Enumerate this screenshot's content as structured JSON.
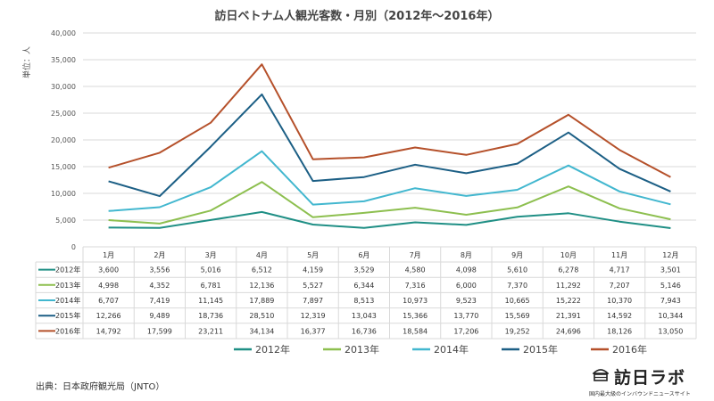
{
  "chart_data": {
    "type": "line",
    "title": "訪日ベトナム人観光客数・月別（2012年～2016年）",
    "unit_label": "単位：人",
    "categories": [
      "1月",
      "2月",
      "3月",
      "4月",
      "5月",
      "6月",
      "7月",
      "8月",
      "9月",
      "10月",
      "11月",
      "12月"
    ],
    "ylim": [
      0,
      40000
    ],
    "yticks": [
      0,
      5000,
      10000,
      15000,
      20000,
      25000,
      30000,
      35000,
      40000
    ],
    "ytick_labels": [
      "0",
      "5,000",
      "10,000",
      "15,000",
      "20,000",
      "25,000",
      "30,000",
      "35,000",
      "40,000"
    ],
    "grid": true,
    "legend_position": "bottom",
    "series": [
      {
        "name": "2012年",
        "color": "#1f8f85",
        "values": [
          3600,
          3556,
          5016,
          6512,
          4159,
          3529,
          4580,
          4098,
          5610,
          6278,
          4717,
          3501
        ],
        "labels": [
          "3,600",
          "3,556",
          "5,016",
          "6,512",
          "4,159",
          "3,529",
          "4,580",
          "4,098",
          "5,610",
          "6,278",
          "4,717",
          "3,501"
        ]
      },
      {
        "name": "2013年",
        "color": "#8dbf4f",
        "values": [
          4998,
          4352,
          6781,
          12136,
          5527,
          6344,
          7316,
          6000,
          7370,
          11292,
          7207,
          5146
        ],
        "labels": [
          "4,998",
          "4,352",
          "6,781",
          "12,136",
          "5,527",
          "6,344",
          "7,316",
          "6,000",
          "7,370",
          "11,292",
          "7,207",
          "5,146"
        ]
      },
      {
        "name": "2014年",
        "color": "#42b7cf",
        "values": [
          6707,
          7419,
          11145,
          17889,
          7897,
          8513,
          10973,
          9523,
          10665,
          15222,
          10370,
          7943
        ],
        "labels": [
          "6,707",
          "7,419",
          "11,145",
          "17,889",
          "7,897",
          "8,513",
          "10,973",
          "9,523",
          "10,665",
          "15,222",
          "10,370",
          "7,943"
        ]
      },
      {
        "name": "2015年",
        "color": "#1c5f85",
        "values": [
          12266,
          9489,
          18736,
          28510,
          12319,
          13043,
          15366,
          13770,
          15569,
          21391,
          14592,
          10344
        ],
        "labels": [
          "12,266",
          "9,489",
          "18,736",
          "28,510",
          "12,319",
          "13,043",
          "15,366",
          "13,770",
          "15,569",
          "21,391",
          "14,592",
          "10,344"
        ]
      },
      {
        "name": "2016年",
        "color": "#b5502a",
        "values": [
          14792,
          17599,
          23211,
          34134,
          16377,
          16736,
          18584,
          17206,
          19252,
          24696,
          18126,
          13050
        ],
        "labels": [
          "14,792",
          "17,599",
          "23,211",
          "34,134",
          "16,377",
          "16,736",
          "18,584",
          "17,206",
          "19,252",
          "24,696",
          "18,126",
          "13,050"
        ]
      }
    ]
  },
  "source": "出典：日本政府観光局（JNTO）",
  "logo": {
    "name": "訪日ラボ",
    "tagline": "国内最大級のインバウンドニュースサイト"
  }
}
